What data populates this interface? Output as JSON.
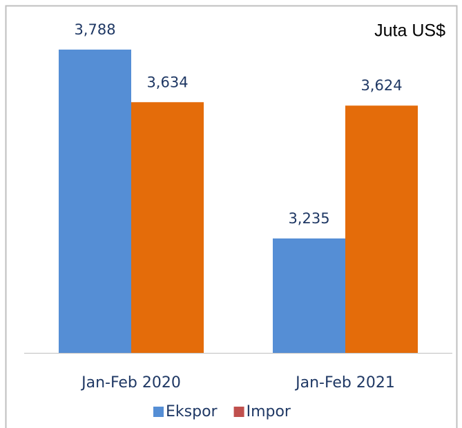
{
  "chart_data": {
    "type": "bar",
    "annotation": "Juta US$",
    "categories": [
      "Jan-Feb 2020",
      "Jan-Feb 2021"
    ],
    "series": [
      {
        "name": "Ekspor",
        "color": "#558ed5",
        "legend_color": "#558ed5",
        "values": [
          3788,
          3235
        ],
        "value_labels": [
          "3,788",
          "3,235"
        ]
      },
      {
        "name": "Impor",
        "color": "#e46c0a",
        "legend_color": "#c0504d",
        "values": [
          3634,
          3624
        ],
        "value_labels": [
          "3,634",
          "3,624"
        ]
      }
    ],
    "ylim": [
      2900,
      3800
    ]
  }
}
